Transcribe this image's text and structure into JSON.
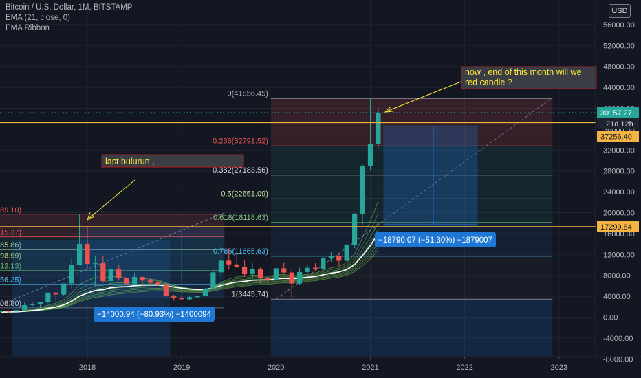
{
  "legend": {
    "symbol": "Bitcoin / U.S. Dollar, 1M, BITSTAMP",
    "ema": "EMA (21, close, 0)",
    "ribbon": "EMA Ribbon"
  },
  "currency_button": "USD",
  "colors": {
    "background": "#131722",
    "up": "#26a69a",
    "down": "#ef5350",
    "grid": "#1f2330",
    "axis_text": "#b2b5be",
    "orange_line": "#f5b342",
    "annotation_yellow": "#ffeb3b",
    "measure_blue": "#1e77d4"
  },
  "price_axis": {
    "ticks": [
      "56000.00",
      "52000.00",
      "48000.00",
      "44000.00",
      "40000.00",
      "36000.00",
      "32000.00",
      "28000.00",
      "24000.00",
      "20000.00",
      "16000.00",
      "12000.00",
      "8000.00",
      "4000.00",
      "0.00",
      "-4000.00",
      "-8000.00"
    ],
    "labels": {
      "current_price": "39157.27",
      "countdown": "21d 12h",
      "level_high": "37256.40",
      "level_low": "17299.84"
    }
  },
  "time_axis": {
    "ticks": [
      "2018",
      "2019",
      "2020",
      "2021",
      "2022",
      "2023"
    ]
  },
  "fib_2021": [
    {
      "label": "0(41856.45)"
    },
    {
      "label": "0.236(32791.52)"
    },
    {
      "label": "0.382(27183.56)"
    },
    {
      "label": "0.5(22651.09)"
    },
    {
      "label": "0.618(18118.63)"
    },
    {
      "label": "0.786(11665.63)"
    },
    {
      "label": "1(3445.74)"
    }
  ],
  "fib_2018": [
    {
      "label": "89.10)"
    },
    {
      "label": "15.37)"
    },
    {
      "label": "85.86)"
    },
    {
      "label": "98.99)"
    },
    {
      "label": "12.13)"
    },
    {
      "label": "56.25)"
    },
    {
      "label": "08.80)"
    }
  ],
  "annotations": {
    "now_note": "now , end of this month will we red candle  ?",
    "last_bull": "last bulurun ,",
    "measure_2018": "−14000.94 (−80.93%) −1400094",
    "measure_2021": "−18790.07 (−51.30%) −1879007"
  },
  "chart_data": {
    "type": "candlestick",
    "title": "Bitcoin / U.S. Dollar, 1M, BITSTAMP",
    "ylim": [
      -8500,
      58000
    ],
    "x_range": [
      "2017-02",
      "2023-04"
    ],
    "candles": [
      [
        "2017-02",
        1000,
        1200,
        950,
        1190
      ],
      [
        "2017-03",
        1190,
        1280,
        900,
        1070
      ],
      [
        "2017-04",
        1070,
        1360,
        1060,
        1350
      ],
      [
        "2017-05",
        1350,
        2760,
        1350,
        2300
      ],
      [
        "2017-06",
        2300,
        3000,
        2100,
        2500
      ],
      [
        "2017-07",
        2500,
        2930,
        1830,
        2860
      ],
      [
        "2017-08",
        2860,
        4700,
        2700,
        4700
      ],
      [
        "2017-09",
        4700,
        4980,
        2970,
        4340
      ],
      [
        "2017-10",
        4340,
        6450,
        4100,
        6450
      ],
      [
        "2017-11",
        6450,
        11300,
        5500,
        10000
      ],
      [
        "2017-12",
        10000,
        19700,
        10000,
        14000
      ],
      [
        "2018-01",
        14000,
        17200,
        9200,
        10200
      ],
      [
        "2018-02",
        10200,
        11800,
        6000,
        10300
      ],
      [
        "2018-03",
        10300,
        11700,
        6600,
        6900
      ],
      [
        "2018-04",
        6900,
        9800,
        6500,
        9200
      ],
      [
        "2018-05",
        9200,
        10000,
        7000,
        7500
      ],
      [
        "2018-06",
        7500,
        7800,
        5800,
        6400
      ],
      [
        "2018-07",
        6400,
        8500,
        6100,
        7700
      ],
      [
        "2018-08",
        7700,
        7800,
        5900,
        7000
      ],
      [
        "2018-09",
        7000,
        7400,
        6100,
        6600
      ],
      [
        "2018-10",
        6600,
        7000,
        6100,
        6300
      ],
      [
        "2018-11",
        6300,
        6500,
        3600,
        4000
      ],
      [
        "2018-12",
        4000,
        4300,
        3150,
        3700
      ],
      [
        "2019-01",
        3700,
        4100,
        3350,
        3440
      ],
      [
        "2019-02",
        3440,
        4200,
        3350,
        3820
      ],
      [
        "2019-03",
        3820,
        4120,
        3700,
        4110
      ],
      [
        "2019-04",
        4110,
        5600,
        4090,
        5330
      ],
      [
        "2019-05",
        5330,
        9100,
        5300,
        8570
      ],
      [
        "2019-06",
        8570,
        13800,
        7500,
        10800
      ],
      [
        "2019-07",
        10800,
        13200,
        9100,
        10100
      ],
      [
        "2019-08",
        10100,
        12300,
        9400,
        9600
      ],
      [
        "2019-09",
        9600,
        10900,
        7700,
        8300
      ],
      [
        "2019-10",
        8300,
        10300,
        7300,
        9200
      ],
      [
        "2019-11",
        9200,
        9500,
        6500,
        7500
      ],
      [
        "2019-12",
        7500,
        7700,
        6400,
        7200
      ],
      [
        "2020-01",
        7200,
        9600,
        6900,
        9350
      ],
      [
        "2020-02",
        9350,
        10500,
        8400,
        8540
      ],
      [
        "2020-03",
        8540,
        9200,
        3850,
        6420
      ],
      [
        "2020-04",
        6420,
        9460,
        6150,
        8630
      ],
      [
        "2020-05",
        8630,
        10060,
        8100,
        9450
      ],
      [
        "2020-06",
        9450,
        10400,
        8900,
        9140
      ],
      [
        "2020-07",
        9140,
        11450,
        8950,
        11350
      ],
      [
        "2020-08",
        11350,
        12470,
        10600,
        11650
      ],
      [
        "2020-09",
        11650,
        12100,
        9850,
        10780
      ],
      [
        "2020-10",
        10780,
        14100,
        10560,
        13800
      ],
      [
        "2020-11",
        13800,
        19900,
        13200,
        19700
      ],
      [
        "2020-12",
        19700,
        29300,
        17600,
        29000
      ],
      [
        "2021-01",
        29000,
        41900,
        28100,
        33100
      ],
      [
        "2021-02",
        33100,
        40200,
        32200,
        39157
      ]
    ],
    "fib_levels_2021": [
      {
        "ratio": 0,
        "price": 41856.45
      },
      {
        "ratio": 0.236,
        "price": 32791.52
      },
      {
        "ratio": 0.382,
        "price": 27183.56
      },
      {
        "ratio": 0.5,
        "price": 22651.09
      },
      {
        "ratio": 0.618,
        "price": 18118.63
      },
      {
        "ratio": 0.786,
        "price": 11665.63
      },
      {
        "ratio": 1,
        "price": 3445.74
      }
    ],
    "horizontal_lines": [
      37256.4,
      17299.84
    ],
    "current_price": 39157.27
  }
}
